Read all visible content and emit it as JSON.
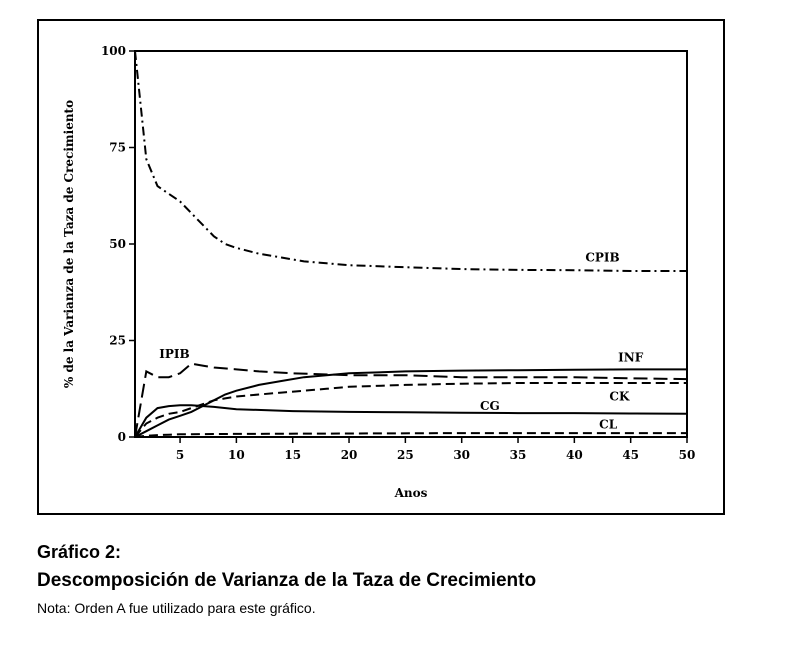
{
  "chart_data": {
    "type": "line",
    "xlabel": "Anos",
    "ylabel": "% de la Varianza de la Taza de Crecimiento",
    "xlim": [
      1,
      50
    ],
    "ylim": [
      0,
      100
    ],
    "x_ticks": [
      5,
      10,
      15,
      20,
      25,
      30,
      35,
      40,
      45,
      50
    ],
    "y_ticks": [
      0,
      25,
      50,
      75,
      100
    ],
    "grid": false,
    "series": [
      {
        "name": "CPIB",
        "style": "dash-dot",
        "x": [
          1,
          2,
          3,
          4,
          5,
          6,
          7,
          8,
          9,
          10,
          12,
          14,
          16,
          18,
          20,
          25,
          30,
          35,
          40,
          45,
          50
        ],
        "y": [
          100,
          72,
          65,
          63,
          61,
          58,
          55,
          52,
          50,
          49,
          47.5,
          46.5,
          45.5,
          45,
          44.5,
          44,
          43.5,
          43.3,
          43.2,
          43,
          43
        ]
      },
      {
        "name": "IPIB",
        "style": "long-dash",
        "x": [
          1,
          2,
          3,
          4,
          5,
          6,
          7,
          8,
          10,
          12,
          15,
          20,
          25,
          30,
          35,
          40,
          45,
          50
        ],
        "y": [
          0,
          17,
          15.5,
          15.5,
          16.5,
          19,
          18.5,
          18,
          17.5,
          17,
          16.5,
          16,
          16,
          15.5,
          15.5,
          15.5,
          15.2,
          15
        ]
      },
      {
        "name": "INF",
        "style": "solid",
        "x": [
          1,
          2,
          3,
          4,
          5,
          6,
          7,
          8,
          9,
          10,
          12,
          14,
          16,
          18,
          20,
          25,
          30,
          35,
          40,
          45,
          50
        ],
        "y": [
          0,
          1.5,
          3,
          4.5,
          5.5,
          6.5,
          8,
          9.5,
          11,
          12,
          13.5,
          14.5,
          15.5,
          16,
          16.5,
          17,
          17.2,
          17.3,
          17.4,
          17.5,
          17.5
        ]
      },
      {
        "name": "CK",
        "style": "dashed",
        "x": [
          1,
          2,
          3,
          4,
          5,
          6,
          7,
          8,
          9,
          10,
          12,
          14,
          16,
          18,
          20,
          25,
          30,
          35,
          40,
          45,
          50
        ],
        "y": [
          0,
          3.5,
          5,
          6,
          6.5,
          7.5,
          8.5,
          9.5,
          10,
          10.5,
          11,
          11.5,
          12,
          12.5,
          13,
          13.5,
          13.8,
          14,
          14,
          14,
          14
        ]
      },
      {
        "name": "CG",
        "style": "solid",
        "x": [
          1,
          2,
          3,
          4,
          5,
          6,
          8,
          10,
          15,
          20,
          25,
          30,
          35,
          40,
          45,
          50
        ],
        "y": [
          0,
          5,
          7.5,
          8,
          8.2,
          8.2,
          7.8,
          7.2,
          6.7,
          6.5,
          6.4,
          6.3,
          6.2,
          6.2,
          6.1,
          6
        ]
      },
      {
        "name": "CL",
        "style": "dashed",
        "x": [
          1,
          2,
          3,
          4,
          5,
          10,
          20,
          30,
          40,
          50
        ],
        "y": [
          0,
          0.3,
          0.5,
          0.6,
          0.7,
          0.8,
          0.9,
          1,
          1,
          1
        ]
      }
    ]
  },
  "caption": {
    "figure_label": "Gráfico 2:",
    "title": "Descomposición de Varianza de la Taza de Crecimiento",
    "note": "Nota: Orden A fue utilizado para este gráfico."
  }
}
